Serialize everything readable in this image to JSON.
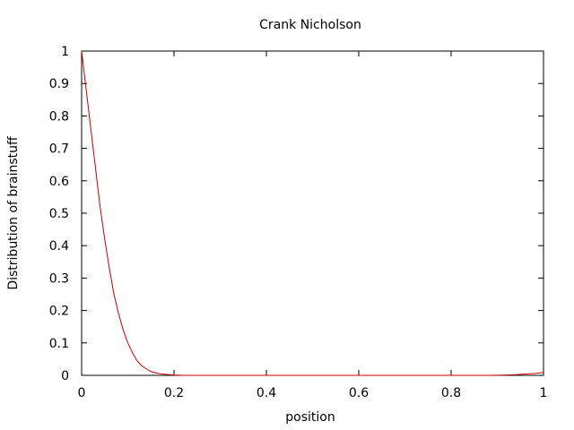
{
  "chart_data": {
    "type": "line",
    "title": "Crank Nicholson",
    "xlabel": "position",
    "ylabel": "Distribution of brainstuff",
    "xlim": [
      0,
      1
    ],
    "ylim": [
      0,
      1
    ],
    "x_ticks": [
      0,
      0.2,
      0.4,
      0.6,
      0.8,
      1
    ],
    "x_tick_labels": [
      "0",
      "0.2",
      "0.4",
      "0.6",
      "0.8",
      "1"
    ],
    "y_ticks": [
      0,
      0.1,
      0.2,
      0.3,
      0.4,
      0.5,
      0.6,
      0.7,
      0.8,
      0.9,
      1
    ],
    "y_tick_labels": [
      "0",
      "0.1",
      "0.2",
      "0.3",
      "0.4",
      "0.5",
      "0.6",
      "0.7",
      "0.8",
      "0.9",
      "1"
    ],
    "grid": false,
    "legend": "none",
    "colors": {
      "series": "#cc0000",
      "axes": "#000000"
    },
    "series": [
      {
        "x": [
          0,
          0.01,
          0.02,
          0.03,
          0.04,
          0.05,
          0.06,
          0.07,
          0.08,
          0.09,
          0.1,
          0.11,
          0.12,
          0.13,
          0.14,
          0.15,
          0.16,
          0.17,
          0.18,
          0.19,
          0.2,
          0.22,
          0.25,
          0.3,
          0.4,
          0.5,
          0.6,
          0.7,
          0.8,
          0.88,
          0.9,
          0.92,
          0.94,
          0.96,
          0.98,
          1.0
        ],
        "y": [
          1.0,
          0.88,
          0.76,
          0.64,
          0.52,
          0.42,
          0.33,
          0.25,
          0.19,
          0.14,
          0.1,
          0.07,
          0.045,
          0.03,
          0.02,
          0.012,
          0.008,
          0.005,
          0.003,
          0.002,
          0.001,
          0,
          0,
          0,
          0,
          0,
          0,
          0,
          0,
          0,
          0.0005,
          0.001,
          0.002,
          0.004,
          0.006,
          0.009
        ]
      }
    ]
  }
}
